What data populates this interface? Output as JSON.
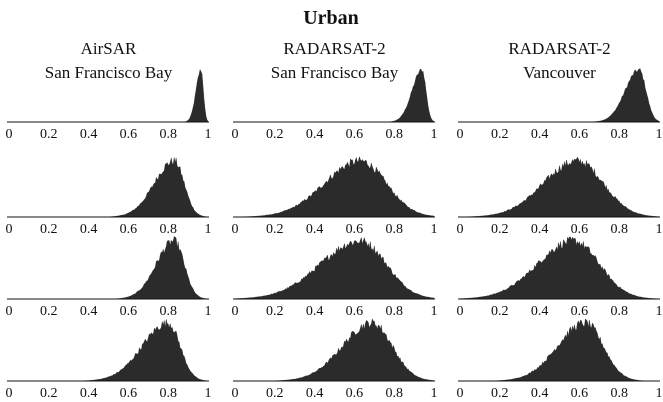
{
  "chart_data": {
    "type": "histogram-grid",
    "title": "Urban",
    "columns": [
      {
        "label_lines": [
          "AirSAR",
          "San Francisco Bay"
        ]
      },
      {
        "label_lines": [
          "RADARSAT-2",
          "San Francisco Bay"
        ]
      },
      {
        "label_lines": [
          "RADARSAT-2",
          "Vancouver"
        ]
      }
    ],
    "x_ticks": [
      "0",
      "0.2",
      "0.4",
      "0.6",
      "0.8",
      "1"
    ],
    "xlim": [
      0,
      1
    ],
    "grid": false,
    "fill_color": "#2b2b2b",
    "panels": [
      [
        {
          "mode": 0.965,
          "spread_left": 0.025,
          "spread_right": 0.012,
          "peak": 1.0,
          "noise": 0.05
        },
        {
          "mode": 0.94,
          "spread_left": 0.05,
          "spread_right": 0.02,
          "peak": 1.0,
          "noise": 0.05
        },
        {
          "mode": 0.9,
          "spread_left": 0.07,
          "spread_right": 0.035,
          "peak": 1.0,
          "noise": 0.05
        }
      ],
      [
        {
          "mode": 0.83,
          "spread_left": 0.1,
          "spread_right": 0.05,
          "peak": 1.0,
          "noise": 0.08
        },
        {
          "mode": 0.63,
          "spread_left": 0.18,
          "spread_right": 0.13,
          "peak": 1.0,
          "noise": 0.08
        },
        {
          "mode": 0.59,
          "spread_left": 0.17,
          "spread_right": 0.13,
          "peak": 1.0,
          "noise": 0.08
        }
      ],
      [
        {
          "mode": 0.83,
          "spread_left": 0.09,
          "spread_right": 0.05,
          "peak": 1.0,
          "noise": 0.08
        },
        {
          "mode": 0.63,
          "spread_left": 0.2,
          "spread_right": 0.13,
          "peak": 1.0,
          "noise": 0.08
        },
        {
          "mode": 0.57,
          "spread_left": 0.18,
          "spread_right": 0.13,
          "peak": 1.0,
          "noise": 0.08
        }
      ],
      [
        {
          "mode": 0.8,
          "spread_left": 0.13,
          "spread_right": 0.06,
          "peak": 1.0,
          "noise": 0.08
        },
        {
          "mode": 0.69,
          "spread_left": 0.15,
          "spread_right": 0.1,
          "peak": 1.0,
          "noise": 0.08
        },
        {
          "mode": 0.63,
          "spread_left": 0.14,
          "spread_right": 0.09,
          "peak": 1.0,
          "noise": 0.08
        }
      ]
    ]
  }
}
